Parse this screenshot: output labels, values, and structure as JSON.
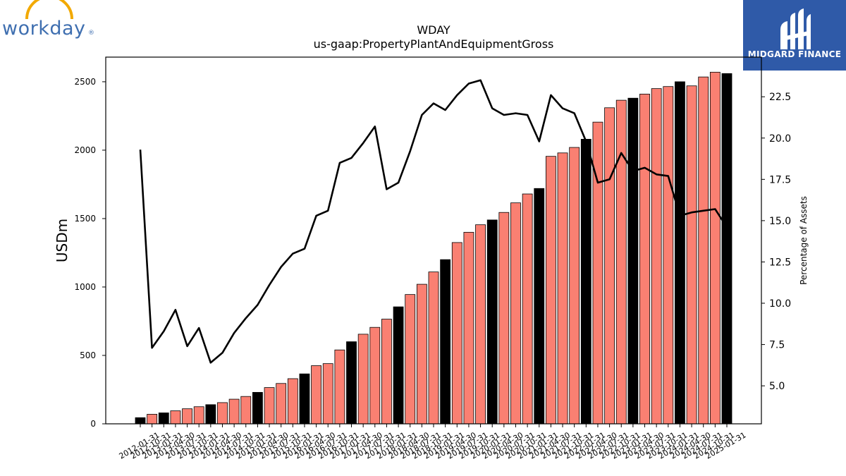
{
  "logos": {
    "left_text": "workday",
    "left_mark": "®",
    "right_text": "MIDGARD FINANCE"
  },
  "colors": {
    "bar_quarterly": "#fa8072",
    "bar_annual": "#000000",
    "bar_edge": "#000000",
    "line": "#000000",
    "brand_blue": "#2f5aa8",
    "workday_blue": "#3f6fb0",
    "workday_orange": "#f2a900"
  },
  "chart_data": {
    "type": "bar",
    "title": "WDAY",
    "subtitle": "us-gaap:PropertyPlantAndEquipmentGross",
    "ylabel": "USDm",
    "y2label": "Percentage of Assets",
    "ylim": [
      0,
      2680
    ],
    "y2lim": [
      2.7,
      24.9
    ],
    "yticks": [
      0,
      500,
      1000,
      1500,
      2000,
      2500
    ],
    "y2ticks": [
      5.0,
      7.5,
      10.0,
      12.5,
      15.0,
      17.5,
      20.0,
      22.5
    ],
    "grid": false,
    "categories": [
      "2012-01-31",
      "2012-10-31",
      "2013-01-31",
      "2013-04-30",
      "2013-07-31",
      "2013-10-31",
      "2014-01-31",
      "2014-04-30",
      "2014-07-31",
      "2014-10-31",
      "2015-01-31",
      "2015-04-30",
      "2015-07-31",
      "2015-10-31",
      "2016-01-31",
      "2016-04-30",
      "2016-07-31",
      "2016-10-31",
      "2017-01-31",
      "2017-04-30",
      "2017-07-31",
      "2017-10-31",
      "2018-01-31",
      "2018-04-30",
      "2018-07-31",
      "2018-10-31",
      "2019-01-31",
      "2019-04-30",
      "2019-07-31",
      "2019-10-31",
      "2020-01-31",
      "2020-04-30",
      "2020-07-31",
      "2020-10-31",
      "2021-01-31",
      "2021-04-30",
      "2021-07-31",
      "2021-10-31",
      "2022-01-31",
      "2022-04-30",
      "2022-07-31",
      "2022-10-31",
      "2023-01-31",
      "2023-04-30",
      "2023-07-31",
      "2023-10-31",
      "2024-01-31",
      "2024-04-30",
      "2024-07-31",
      "2024-10-31",
      "2025-01-31"
    ],
    "series": [
      {
        "kind": "bar",
        "values": [
          45,
          70,
          80,
          95,
          110,
          125,
          140,
          155,
          180,
          200,
          230,
          265,
          295,
          330,
          365,
          425,
          440,
          540,
          600,
          655,
          705,
          765,
          855,
          945,
          1020,
          1110,
          1200,
          1325,
          1400,
          1455,
          1490,
          1545,
          1615,
          1680,
          1720,
          1955,
          1980,
          2020,
          2080,
          2205,
          2310,
          2365,
          2380,
          2410,
          2450,
          2465,
          2500,
          2470,
          2535,
          2570,
          2560
        ],
        "annual": [
          true,
          false,
          true,
          false,
          false,
          false,
          true,
          false,
          false,
          false,
          true,
          false,
          false,
          false,
          true,
          false,
          false,
          false,
          true,
          false,
          false,
          false,
          true,
          false,
          false,
          false,
          true,
          false,
          false,
          false,
          true,
          false,
          false,
          false,
          true,
          false,
          false,
          false,
          true,
          false,
          false,
          false,
          true,
          false,
          false,
          false,
          true,
          false,
          false,
          false,
          true
        ]
      },
      {
        "kind": "line",
        "axis": "right",
        "values": [
          19.3,
          7.3,
          8.3,
          9.6,
          7.4,
          8.5,
          6.4,
          7.0,
          8.2,
          9.1,
          9.9,
          11.1,
          12.2,
          13.0,
          13.3,
          15.3,
          15.6,
          18.5,
          18.8,
          19.7,
          20.7,
          16.9,
          17.3,
          19.2,
          21.4,
          22.1,
          21.7,
          22.6,
          23.3,
          23.5,
          21.8,
          21.4,
          21.5,
          21.4,
          19.8,
          22.6,
          21.8,
          21.5,
          19.8,
          17.3,
          17.5,
          19.1,
          18.0,
          18.2,
          17.8,
          17.7,
          15.3,
          15.5,
          15.6,
          15.7,
          14.6
        ]
      }
    ]
  }
}
